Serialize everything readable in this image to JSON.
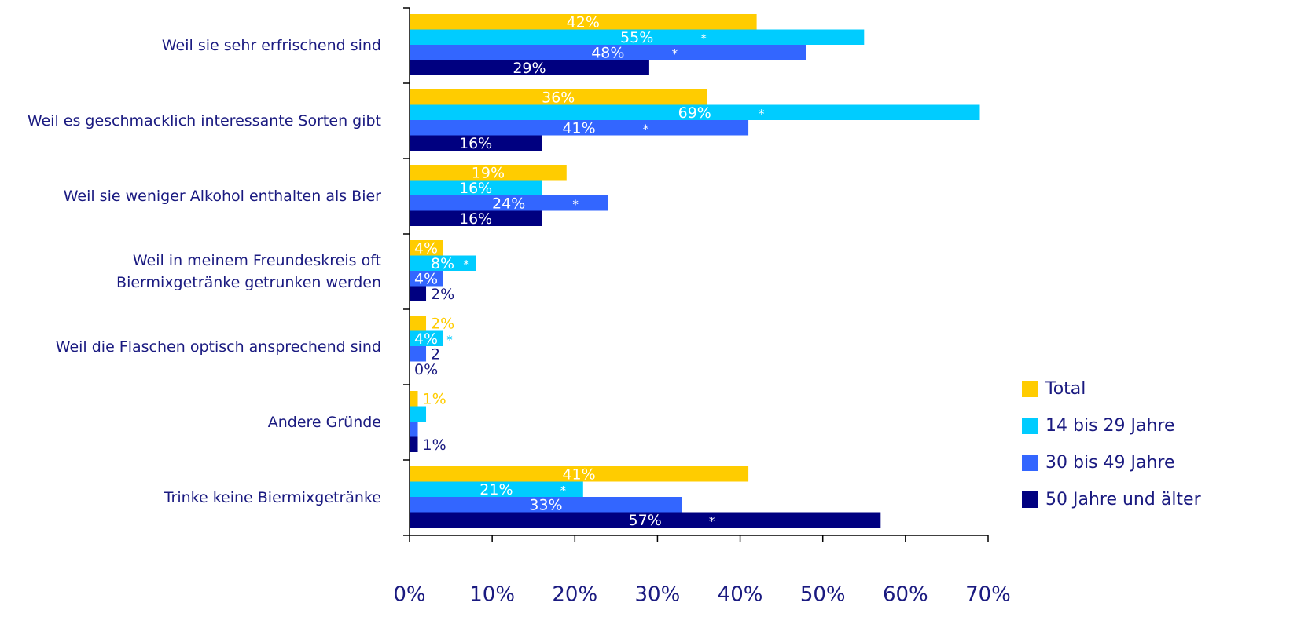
{
  "chart_data": {
    "type": "barh",
    "categories": [
      "Weil sie sehr erfrischend sind",
      "Weil es geschmacklich interessante Sorten gibt",
      "Weil sie weniger Alkohol enthalten als Bier",
      "Weil in meinem Freundeskreis oft\nBiermixgetränke getrunken werden",
      "Weil die Flaschen optisch ansprechend sind",
      "Andere Gründe",
      "Trinke keine Biermixgetränke"
    ],
    "series": [
      {
        "name": "Total",
        "color": "#ffcc00",
        "values": [
          42,
          36,
          19,
          4,
          2,
          1,
          41
        ],
        "value_labels": [
          "42%",
          "36%",
          "19%",
          "4%",
          "2%",
          "1%",
          "41%"
        ],
        "annotations": [
          null,
          null,
          null,
          null,
          null,
          null,
          null
        ]
      },
      {
        "name": "14 bis 29 Jahre",
        "color": "#00ccff",
        "values": [
          55,
          69,
          16,
          8,
          4,
          2,
          21
        ],
        "value_labels": [
          "55%",
          "69%",
          "16%",
          "8%",
          "4%",
          null,
          "21%"
        ],
        "annotations": [
          "*",
          "*",
          null,
          "*",
          "*",
          null,
          "*"
        ]
      },
      {
        "name": "30 bis 49 Jahre",
        "color": "#3366ff",
        "values": [
          48,
          41,
          24,
          4,
          2,
          1,
          33
        ],
        "value_labels": [
          "48%",
          "41%",
          "24%",
          "4%",
          "2",
          null,
          "33%"
        ],
        "annotations": [
          "*",
          "*",
          "*",
          null,
          null,
          null,
          null
        ]
      },
      {
        "name": "50 Jahre und älter",
        "color": "#000080",
        "values": [
          29,
          16,
          16,
          2,
          0,
          1,
          57
        ],
        "value_labels": [
          "29%",
          "16%",
          "16%",
          "2%",
          "0%",
          "1%",
          "57%"
        ],
        "annotations": [
          null,
          null,
          null,
          null,
          null,
          null,
          "*"
        ]
      }
    ],
    "xlim": [
      0,
      70
    ],
    "xticks": [
      {
        "value": 0,
        "label": "0%"
      },
      {
        "value": 10,
        "label": "10%"
      },
      {
        "value": 20,
        "label": "20%"
      },
      {
        "value": 30,
        "label": "30%"
      },
      {
        "value": 40,
        "label": "40%"
      },
      {
        "value": 50,
        "label": "50%"
      },
      {
        "value": 60,
        "label": "60%"
      },
      {
        "value": 70,
        "label": "70%"
      }
    ],
    "legend": "right"
  }
}
